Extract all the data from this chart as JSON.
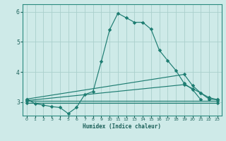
{
  "xlabel": "Humidex (Indice chaleur)",
  "background_color": "#ceeae8",
  "grid_color": "#aacfcc",
  "line_color": "#1e7d72",
  "xlim": [
    -0.5,
    23.5
  ],
  "ylim": [
    2.55,
    6.25
  ],
  "yticks": [
    3,
    4,
    5,
    6
  ],
  "xticks": [
    0,
    1,
    2,
    3,
    4,
    5,
    6,
    7,
    8,
    9,
    10,
    11,
    12,
    13,
    14,
    15,
    16,
    17,
    18,
    19,
    20,
    21,
    22,
    23
  ],
  "lines_data": [
    {
      "x": [
        0,
        1,
        2,
        3,
        4,
        5,
        6,
        7,
        8,
        9,
        10,
        11,
        12,
        13,
        14,
        15,
        16,
        17,
        18,
        19,
        20,
        21
      ],
      "y": [
        3.1,
        2.95,
        2.9,
        2.85,
        2.82,
        2.62,
        2.82,
        3.25,
        3.35,
        4.35,
        5.4,
        5.95,
        5.8,
        5.65,
        5.65,
        5.42,
        4.72,
        4.38,
        4.05,
        3.62,
        3.42,
        3.08
      ]
    },
    {
      "x": [
        0,
        23
      ],
      "y": [
        3.05,
        3.05
      ]
    },
    {
      "x": [
        0,
        23
      ],
      "y": [
        2.98,
        2.98
      ]
    },
    {
      "x": [
        0,
        19,
        20,
        21,
        22,
        23
      ],
      "y": [
        3.1,
        3.92,
        3.55,
        3.3,
        3.1,
        3.08
      ]
    },
    {
      "x": [
        0,
        19,
        20,
        21,
        22,
        23
      ],
      "y": [
        3.05,
        3.58,
        3.45,
        3.3,
        3.15,
        3.08
      ]
    }
  ]
}
